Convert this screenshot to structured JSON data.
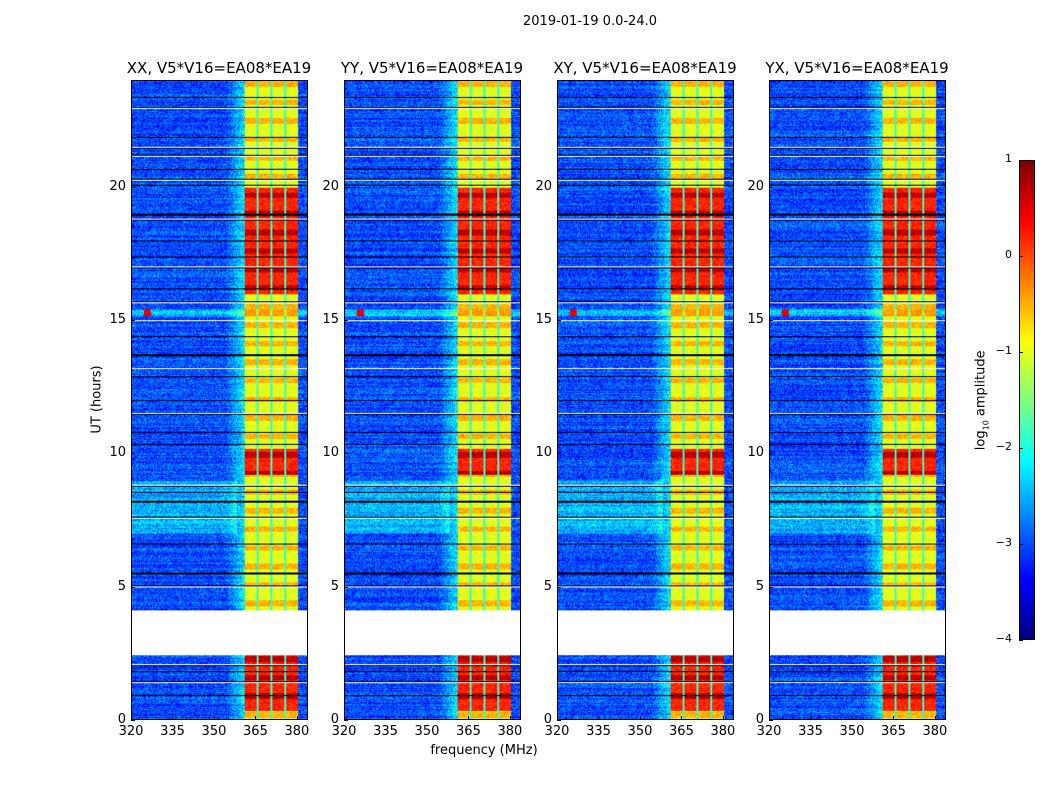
{
  "suptitle": "2019-01-19 0.0-24.0",
  "chart_data": {
    "type": "heatmap",
    "xlabel": "frequency (MHz)",
    "ylabel": "UT (hours)",
    "xlim": [
      320,
      384
    ],
    "ylim": [
      0,
      24
    ],
    "xticks": [
      "320",
      "335",
      "350",
      "365",
      "380"
    ],
    "yticks": [
      "0",
      "5",
      "10",
      "15",
      "20"
    ],
    "panels": [
      {
        "title": "XX, V5*V16=EA08*EA19"
      },
      {
        "title": "YY, V5*V16=EA08*EA19"
      },
      {
        "title": "XY, V5*V16=EA08*EA19"
      },
      {
        "title": "YX, V5*V16=EA08*EA19"
      }
    ],
    "colorbar": {
      "label": "log10 amplitude",
      "label_main": "log",
      "label_sub": "10",
      "label_rest": " amplitude",
      "range": [
        -4,
        1
      ],
      "ticks": [
        "1",
        "0",
        "−1",
        "−2",
        "−3",
        "−4"
      ],
      "colormap": "jet"
    },
    "features": {
      "background_level": -3,
      "band_mhz": [
        361,
        380.5
      ],
      "band_level": -1,
      "band_subband_gaps_mhz": [
        365.8,
        370.8,
        375.8
      ],
      "strong_hours": [
        [
          0.3,
          2.4
        ],
        [
          9.2,
          10.2
        ],
        [
          16.0,
          20.0
        ]
      ],
      "no_data_hours": [
        [
          2.4,
          4.1
        ]
      ],
      "flagged_hours": [
        0.9,
        1.4,
        1.8,
        2.05,
        5.0,
        5.5,
        6.6,
        7.6,
        8.2,
        8.55,
        8.8,
        10.35,
        10.8,
        11.5,
        12.0,
        12.9,
        13.2,
        13.7,
        14.4,
        15.0,
        15.7,
        16.2,
        17.0,
        17.4,
        18.0,
        18.8,
        19.0,
        20.1,
        20.3,
        20.7,
        21.2,
        21.5,
        21.9,
        23.0,
        23.4
      ],
      "interference_hours": [
        15.3
      ],
      "interference_mhz": 325.5
    }
  }
}
